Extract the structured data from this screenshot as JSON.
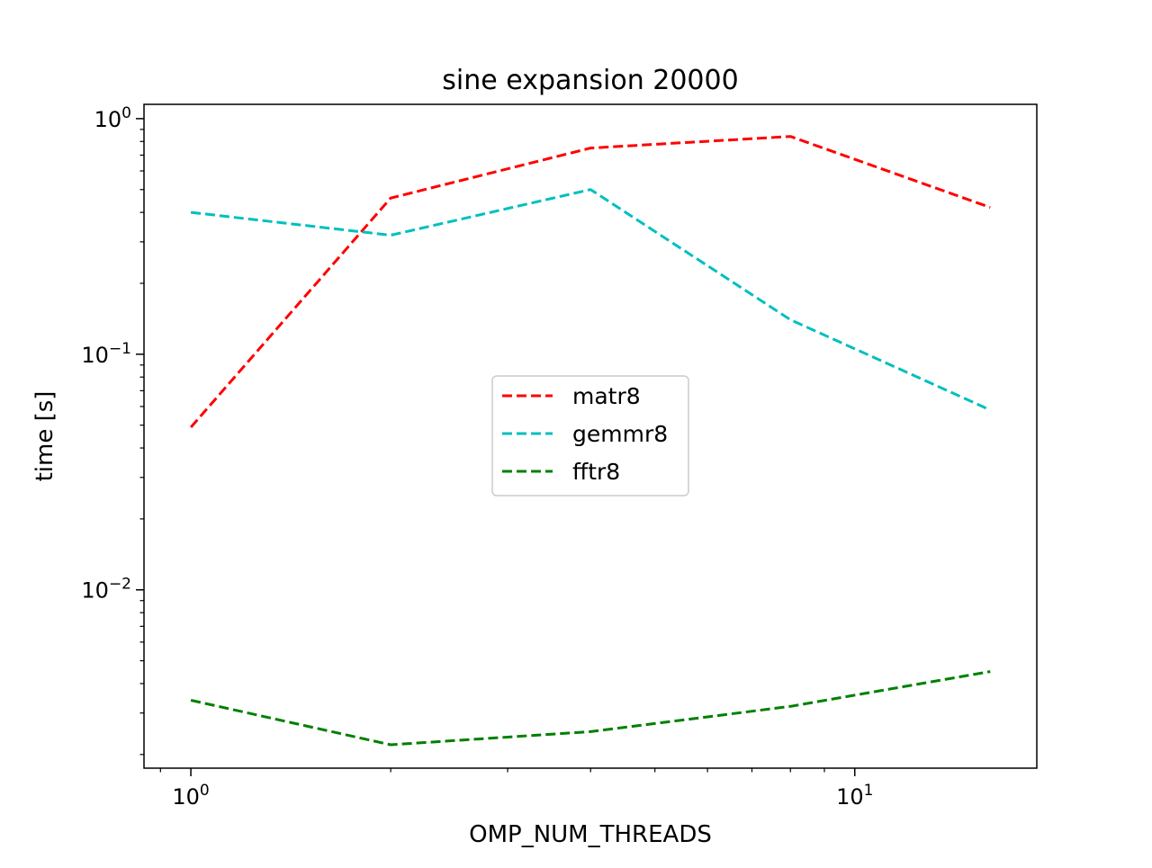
{
  "chart_data": {
    "type": "line",
    "title": "sine expansion 20000",
    "xlabel": "OMP_NUM_THREADS",
    "ylabel": "time [s]",
    "xscale": "log",
    "yscale": "log",
    "xlim": [
      0.85,
      18.8
    ],
    "ylim": [
      0.00175,
      1.15
    ],
    "x": [
      1,
      2,
      4,
      8,
      16
    ],
    "series": [
      {
        "name": "matr8",
        "color": "#ff0000",
        "linestyle": "dashed",
        "values": [
          0.049,
          0.46,
          0.75,
          0.84,
          0.42
        ]
      },
      {
        "name": "gemmr8",
        "color": "#00bfbf",
        "linestyle": "dashed",
        "values": [
          0.4,
          0.32,
          0.5,
          0.14,
          0.058
        ]
      },
      {
        "name": "fftr8",
        "color": "#008000",
        "linestyle": "dashed",
        "values": [
          0.0034,
          0.0022,
          0.0025,
          0.0032,
          0.0045
        ]
      }
    ],
    "xticks": [
      {
        "value": 1,
        "base": "10",
        "exp": "0"
      },
      {
        "value": 10,
        "base": "10",
        "exp": "1"
      }
    ],
    "yticks": [
      {
        "value": 1,
        "base": "10",
        "exp": "0"
      },
      {
        "value": 0.1,
        "base": "10",
        "exp": "−1"
      },
      {
        "value": 0.01,
        "base": "10",
        "exp": "−2"
      }
    ],
    "grid": false,
    "legend_position": "center"
  }
}
